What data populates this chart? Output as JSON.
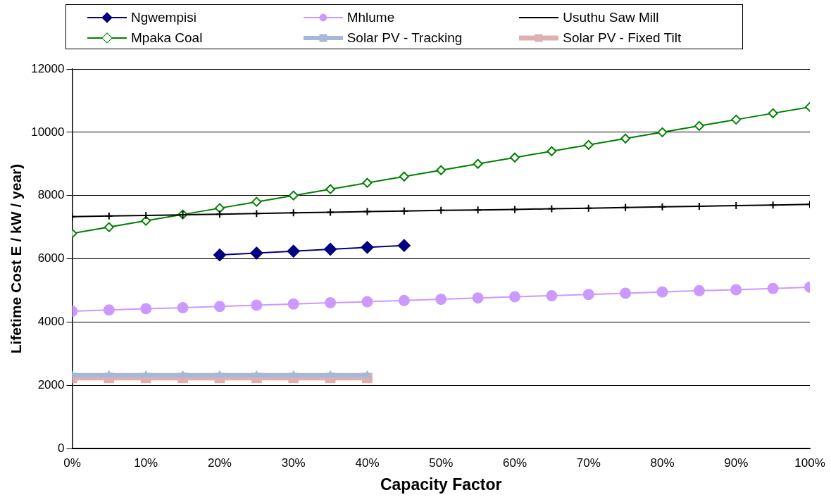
{
  "chart_data": {
    "type": "line",
    "xlabel": "Capacity Factor",
    "ylabel": "Lifetime Cost E / kW / year)",
    "x": [
      0,
      5,
      10,
      15,
      20,
      25,
      30,
      35,
      40,
      45,
      50,
      55,
      60,
      65,
      70,
      75,
      80,
      85,
      90,
      95,
      100
    ],
    "xlim": [
      0,
      100
    ],
    "xticks": [
      {
        "value": 0,
        "label": "0%"
      },
      {
        "value": 10,
        "label": "10%"
      },
      {
        "value": 20,
        "label": "20%"
      },
      {
        "value": 30,
        "label": "30%"
      },
      {
        "value": 40,
        "label": "40%"
      },
      {
        "value": 50,
        "label": "50%"
      },
      {
        "value": 60,
        "label": "60%"
      },
      {
        "value": 70,
        "label": "70%"
      },
      {
        "value": 80,
        "label": "80%"
      },
      {
        "value": 90,
        "label": "90%"
      },
      {
        "value": 100,
        "label": "100%"
      }
    ],
    "ylim": [
      0,
      12000
    ],
    "yticks": [
      0,
      2000,
      4000,
      6000,
      8000,
      10000,
      12000
    ],
    "grid": "y",
    "legend": "top",
    "series": [
      {
        "name": "Ngwempisi",
        "color": "#000080",
        "marker": "diamond",
        "x": [
          20,
          25,
          30,
          35,
          40,
          45
        ],
        "values": [
          6120,
          6180,
          6240,
          6300,
          6360,
          6420
        ]
      },
      {
        "name": "Mhlume",
        "color": "#cc99ff",
        "marker": "circle",
        "values": [
          4340,
          4380,
          4420,
          4450,
          4490,
          4530,
          4570,
          4610,
          4640,
          4680,
          4720,
          4760,
          4800,
          4830,
          4870,
          4910,
          4950,
          4990,
          5020,
          5060,
          5100
        ]
      },
      {
        "name": "Usuthu Saw Mill",
        "color": "#000000",
        "marker": "cross",
        "values": [
          7330,
          7350,
          7370,
          7390,
          7410,
          7430,
          7450,
          7470,
          7490,
          7510,
          7530,
          7540,
          7560,
          7580,
          7600,
          7620,
          7640,
          7660,
          7680,
          7700,
          7720
        ]
      },
      {
        "name": "Mpaka Coal",
        "color": "#008000",
        "marker": "diamond-open",
        "values": [
          6800,
          7000,
          7200,
          7400,
          7600,
          7800,
          8000,
          8200,
          8400,
          8600,
          8800,
          9000,
          9200,
          9400,
          9600,
          9800,
          10000,
          10200,
          10400,
          10600,
          10800
        ]
      },
      {
        "name": "Solar PV - Tracking",
        "color": "#a6b8d6",
        "marker": "triangle",
        "x": [
          0,
          5,
          10,
          15,
          20,
          25,
          30,
          35,
          40
        ],
        "values": [
          2320,
          2320,
          2320,
          2320,
          2320,
          2320,
          2320,
          2320,
          2320
        ]
      },
      {
        "name": "Solar PV - Fixed Tilt",
        "color": "#dbb1b1",
        "marker": "square",
        "x": [
          0,
          5,
          10,
          15,
          20,
          25,
          30,
          35,
          40
        ],
        "values": [
          2230,
          2230,
          2230,
          2230,
          2230,
          2230,
          2230,
          2230,
          2230
        ]
      }
    ]
  }
}
